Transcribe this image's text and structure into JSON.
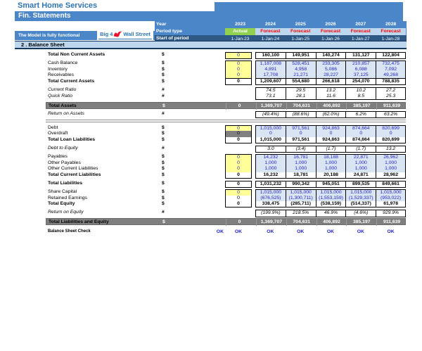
{
  "title": "Smart Home Services",
  "statement_title": "Fin. Statements",
  "model_note": "The Model is fully functional",
  "logo": {
    "left": "Big 4",
    "right": "Wall Street",
    "icon": "red-eagle"
  },
  "header": {
    "year_label": "Year",
    "period_type_label": "Period type",
    "start_label": "Start of period",
    "years": [
      "2023",
      "2024",
      "2025",
      "2026",
      "2027",
      "2028"
    ],
    "period_types": [
      "Actual",
      "Forecast",
      "Forecast",
      "Forecast",
      "Forecast",
      "Forecast"
    ],
    "start_dates": [
      "1-Jan-23",
      "1-Jan-24",
      "1-Jan-25",
      "1-Jan-26",
      "1-Jan-27",
      "1-Jan-28"
    ]
  },
  "section_title": "2 . Balance Sheet",
  "rows": [
    {
      "label": "Total Non Current Assets",
      "unit": "$",
      "style": "total",
      "c0": "0",
      "c0bg": "yellow",
      "group": "solo",
      "gap": false,
      "values": [
        "160,100",
        "149,951",
        "140,274",
        "131,127",
        "122,804"
      ]
    },
    {
      "label": "Cash Balance",
      "unit": "$",
      "style": "item",
      "c0": "0",
      "c0bg": "yellow",
      "group": "start",
      "gap": true,
      "values": [
        "1,187,008",
        "528,451",
        "233,305",
        "210,857",
        "732,475"
      ]
    },
    {
      "label": "Inventory",
      "unit": "$",
      "style": "item",
      "c0": "0",
      "c0bg": "yellow",
      "group": "mid",
      "gap": false,
      "values": [
        "4,891",
        "4,958",
        "5,086",
        "6,088",
        "7,092"
      ]
    },
    {
      "label": "Receivables",
      "unit": "$",
      "style": "item",
      "c0": "0",
      "c0bg": "yellow",
      "group": "mid",
      "gap": false,
      "values": [
        "17,708",
        "21,271",
        "28,227",
        "37,125",
        "49,268"
      ]
    },
    {
      "label": "Total Current Assets",
      "unit": "$",
      "style": "total",
      "c0": "0",
      "c0bg": "plain",
      "group": "end",
      "gap": false,
      "values": [
        "1,209,607",
        "554,680",
        "266,618",
        "254,070",
        "788,835"
      ]
    },
    {
      "label": "Current Ratio",
      "unit": "#",
      "style": "ratio",
      "c0": null,
      "group": "start",
      "gap": true,
      "values": [
        "74.5",
        "29.5",
        "13.2",
        "10.2",
        "27.2"
      ]
    },
    {
      "label": "Quick Ratio",
      "unit": "#",
      "style": "ratio",
      "c0": null,
      "group": "end",
      "gap": false,
      "values": [
        "73.1",
        "28.1",
        "11.6",
        "8.5",
        "25.3"
      ]
    },
    {
      "label": "Total Assets",
      "unit": "$",
      "style": "gray",
      "c0": "0",
      "c0bg": "gray",
      "group": "solo",
      "gap": true,
      "values": [
        "1,369,707",
        "704,631",
        "406,892",
        "385,197",
        "911,639"
      ]
    },
    {
      "label": "Return on Assets",
      "unit": "#",
      "style": "ratio",
      "c0": null,
      "group": "solo",
      "gap": true,
      "values": [
        "(49.4%)",
        "(88.6%)",
        "(62.0%)",
        "6.2%",
        "63.2%"
      ]
    },
    {
      "type": "divider"
    },
    {
      "label": "Debt",
      "unit": "$",
      "style": "item",
      "c0": "0",
      "c0bg": "yellow",
      "group": "start",
      "gap": false,
      "values": [
        "1,015,000",
        "971,561",
        "924,863",
        "874,664",
        "820,699"
      ]
    },
    {
      "label": "Overdraft",
      "unit": "$",
      "style": "item",
      "c0": "0",
      "c0bg": "gray",
      "group": "mid",
      "gap": false,
      "values": [
        "0",
        "0",
        "0",
        "0",
        "0"
      ]
    },
    {
      "label": "Total Loan Liabilities",
      "unit": "$",
      "style": "total",
      "c0": "0",
      "c0bg": "plain",
      "group": "end",
      "gap": false,
      "values": [
        "1,015,000",
        "971,561",
        "924,863",
        "874,664",
        "820,699"
      ]
    },
    {
      "label": "Debt to Equity",
      "unit": "#",
      "style": "ratio",
      "c0": null,
      "group": "solo",
      "gap": true,
      "values": [
        "3.0",
        "(3.4)",
        "(1.7)",
        "(1.7)",
        "13.2"
      ]
    },
    {
      "label": "Payables",
      "unit": "$",
      "style": "item",
      "c0": "0",
      "c0bg": "yellow",
      "group": "start",
      "gap": true,
      "values": [
        "14,232",
        "16,781",
        "18,188",
        "22,871",
        "26,962"
      ]
    },
    {
      "label": "Other Payables",
      "unit": "$",
      "style": "item",
      "c0": "0",
      "c0bg": "yellow",
      "group": "mid",
      "gap": false,
      "values": [
        "1,000",
        "1,000",
        "1,000",
        "1,000",
        "1,000"
      ]
    },
    {
      "label": "Other Current Liabilities",
      "unit": "$",
      "style": "item",
      "c0": "0",
      "c0bg": "yellow",
      "group": "mid",
      "gap": false,
      "values": [
        "1,000",
        "1,000",
        "1,000",
        "1,000",
        "1,000"
      ]
    },
    {
      "label": "Total Current Liabilities",
      "unit": "$",
      "style": "total",
      "c0": "0",
      "c0bg": "plain",
      "group": "end",
      "gap": false,
      "values": [
        "16,232",
        "18,781",
        "20,188",
        "24,871",
        "28,962"
      ]
    },
    {
      "label": "Total Liabilities",
      "unit": "$",
      "style": "total",
      "c0": "0",
      "c0bg": "plain",
      "group": "solo",
      "gap": true,
      "values": [
        "1,031,232",
        "990,342",
        "945,051",
        "899,535",
        "849,661"
      ]
    },
    {
      "label": "Share Capital",
      "unit": "$",
      "style": "item",
      "c0": "0",
      "c0bg": "yellow",
      "group": "start",
      "gap": true,
      "values": [
        "1,015,000",
        "1,015,000",
        "1,015,000",
        "1,015,000",
        "1,015,000"
      ]
    },
    {
      "label": "Retained Earnings",
      "unit": "$",
      "style": "item",
      "c0": "0",
      "c0bg": "plain",
      "group": "mid",
      "gap": false,
      "values": [
        "(676,525)",
        "(1,300,711)",
        "(1,553,159)",
        "(1,529,337)",
        "(953,022)"
      ]
    },
    {
      "label": "Total Equity",
      "unit": "$",
      "style": "total",
      "c0": "0",
      "c0bg": "plain",
      "group": "end",
      "gap": false,
      "values": [
        "338,475",
        "(285,711)",
        "(538,159)",
        "(514,337)",
        "61,978"
      ]
    },
    {
      "label": "Return on Equity",
      "unit": "#",
      "style": "ratio",
      "c0": null,
      "group": "solo",
      "gap": true,
      "values": [
        "(199.9%)",
        "218.5%",
        "46.9%",
        "(4.6%)",
        "929.9%"
      ]
    },
    {
      "label": "Total Liabilities and Equity",
      "unit": "$",
      "style": "gray",
      "c0": "0",
      "c0bg": "gray",
      "group": "solo",
      "gap": true,
      "values": [
        "1,369,707",
        "704,631",
        "406,892",
        "385,197",
        "911,639"
      ]
    }
  ],
  "balance_check": {
    "label": "Balance Sheet Check",
    "values": [
      "OK",
      "OK",
      "OK",
      "OK",
      "OK",
      "OK",
      "OK"
    ]
  },
  "colors": {
    "brand_blue": "#2E75B6",
    "accent_blue": "#4A86C8",
    "dark_blue": "#2E5984",
    "light_blue_band": "#BDD7EE",
    "cell_blue_bg": "#D9E5F3",
    "input_yellow": "#FFFF99",
    "actual_green": "#92D050",
    "forecast_red": "#FF0000",
    "total_gray_bar": "#7F7F7F",
    "font_blue": "#2323CC",
    "logo_red": "#E8112D"
  }
}
